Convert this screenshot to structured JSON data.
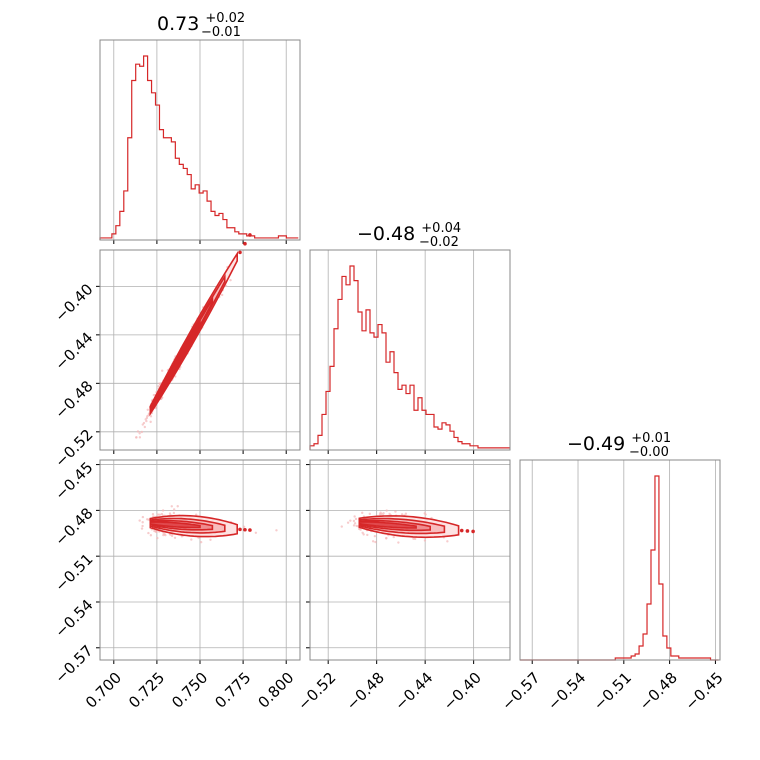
{
  "chart_data": [
    {
      "type": "histogram",
      "panel": "1-1",
      "title": {
        "value": "0.73",
        "plus": "+0.02",
        "minus": "−0.01"
      },
      "xlim": [
        0.692,
        0.808
      ],
      "grid": true,
      "color": "#d62728",
      "x_ticks": [
        0.7,
        0.725,
        0.75,
        0.775,
        0.8
      ],
      "bins": {
        "start": 0.692,
        "width": 0.0023,
        "heights": [
          0.01,
          0.01,
          0.01,
          0.03,
          0.07,
          0.14,
          0.24,
          0.5,
          0.78,
          0.86,
          0.85,
          0.9,
          0.78,
          0.72,
          0.66,
          0.54,
          0.5,
          0.5,
          0.48,
          0.4,
          0.37,
          0.35,
          0.32,
          0.25,
          0.27,
          0.23,
          0.24,
          0.19,
          0.14,
          0.12,
          0.13,
          0.1,
          0.06,
          0.06,
          0.04,
          0.03,
          0.03,
          0.02,
          0.02,
          0.01,
          0.01,
          0.01,
          0.01,
          0.01,
          0.01,
          0.02,
          0.02,
          0.01,
          0.01,
          0.01
        ]
      }
    },
    {
      "type": "contour-scatter",
      "panel": "2-1",
      "xlim": [
        0.692,
        0.808
      ],
      "ylim": [
        -0.535,
        -0.37
      ],
      "grid": true,
      "color": "#d62728",
      "y_ticks": [
        -0.4,
        -0.44,
        -0.48,
        -0.52
      ],
      "relation": {
        "x_center": 0.73,
        "y_at_center": -0.48,
        "slope": 2.5
      }
    },
    {
      "type": "histogram",
      "panel": "2-2",
      "title": {
        "value": "−0.48",
        "plus": "+0.04",
        "minus": "−0.02"
      },
      "xlim": [
        -0.535,
        -0.37
      ],
      "grid": true,
      "color": "#d62728",
      "x_ticks": [
        -0.52,
        -0.48,
        -0.44,
        -0.4
      ],
      "bins": {
        "start": -0.535,
        "width": 0.0033,
        "heights": [
          0.02,
          0.03,
          0.07,
          0.17,
          0.28,
          0.4,
          0.58,
          0.72,
          0.83,
          0.79,
          0.88,
          0.81,
          0.66,
          0.57,
          0.67,
          0.56,
          0.54,
          0.6,
          0.56,
          0.42,
          0.47,
          0.37,
          0.29,
          0.31,
          0.27,
          0.31,
          0.19,
          0.25,
          0.19,
          0.17,
          0.17,
          0.11,
          0.1,
          0.13,
          0.12,
          0.09,
          0.06,
          0.04,
          0.03,
          0.03,
          0.02,
          0.02,
          0.01,
          0.01,
          0.01,
          0.01,
          0.01,
          0.01,
          0.01,
          0.01
        ]
      }
    },
    {
      "type": "contour-scatter",
      "panel": "3-1",
      "xlim": [
        0.692,
        0.808
      ],
      "ylim": [
        -0.578,
        -0.447
      ],
      "grid": true,
      "color": "#d62728",
      "y_ticks": [
        -0.45,
        -0.48,
        -0.51,
        -0.54,
        -0.57
      ],
      "relation": {
        "x_center": 0.73,
        "y_at_center": -0.489,
        "slope": -0.08
      }
    },
    {
      "type": "contour-scatter",
      "panel": "3-2",
      "xlim": [
        -0.535,
        -0.37
      ],
      "ylim": [
        -0.578,
        -0.447
      ],
      "grid": true,
      "color": "#d62728",
      "relation": {
        "x_center": -0.48,
        "y_at_center": -0.489,
        "slope": -0.06
      }
    },
    {
      "type": "histogram",
      "panel": "3-3",
      "title": {
        "value": "−0.49",
        "plus": "+0.01",
        "minus": "−0.00"
      },
      "xlim": [
        -0.578,
        -0.447
      ],
      "grid": true,
      "color": "#d62728",
      "x_ticks": [
        -0.57,
        -0.54,
        -0.51,
        -0.48,
        -0.45
      ],
      "bins": {
        "start": -0.578,
        "width": 0.0026,
        "heights": [
          0,
          0,
          0,
          0,
          0,
          0,
          0,
          0,
          0,
          0,
          0,
          0,
          0,
          0,
          0,
          0,
          0,
          0,
          0,
          0,
          0,
          0,
          0,
          0,
          0.01,
          0.01,
          0.01,
          0.01,
          0.02,
          0.03,
          0.07,
          0.13,
          0.28,
          0.55,
          0.92,
          0.38,
          0.12,
          0.06,
          0.02,
          0.02,
          0.01,
          0.01,
          0.01,
          0.01,
          0.01,
          0.01,
          0.01,
          0.01,
          0.0,
          0.0
        ]
      }
    }
  ],
  "tick_labels": {
    "x1": [
      "0.700",
      "0.725",
      "0.750",
      "0.775",
      "0.800"
    ],
    "x2": [
      "−0.52",
      "−0.48",
      "−0.44",
      "−0.40"
    ],
    "x3": [
      "−0.57",
      "−0.54",
      "−0.51",
      "−0.48",
      "−0.45"
    ],
    "y2": [
      "−0.40",
      "−0.44",
      "−0.48",
      "−0.52"
    ],
    "y3": [
      "−0.45",
      "−0.48",
      "−0.51",
      "−0.54",
      "−0.57"
    ]
  }
}
